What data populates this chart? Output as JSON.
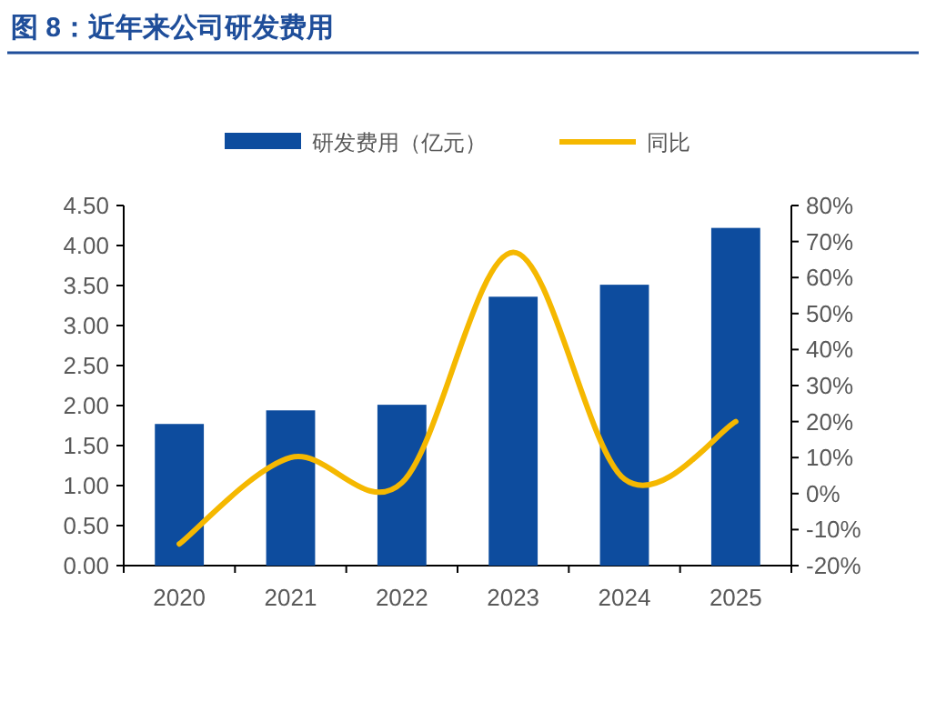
{
  "chart_data": {
    "type": "bar",
    "title": "图 8：近年来公司研发费用",
    "categories": [
      "2020",
      "2021",
      "2022",
      "2023",
      "2024",
      "2025"
    ],
    "series": [
      {
        "name": "研发费用（亿元）",
        "color": "#0d4c9e",
        "values": [
          1.77,
          1.94,
          2.01,
          3.36,
          3.51,
          4.22
        ]
      },
      {
        "name": "同比",
        "type": "line",
        "axis": "y2",
        "color": "#f5b800",
        "values": [
          -14,
          10,
          3,
          67,
          4,
          20
        ]
      }
    ],
    "ylim": [
      0,
      4.5
    ],
    "yticks": [
      {
        "value": 0,
        "label": "0.00"
      },
      {
        "value": 0.5,
        "label": "0.50"
      },
      {
        "value": 1,
        "label": "1.00"
      },
      {
        "value": 1.5,
        "label": "1.50"
      },
      {
        "value": 2,
        "label": "2.00"
      },
      {
        "value": 2.5,
        "label": "2.50"
      },
      {
        "value": 3,
        "label": "3.00"
      },
      {
        "value": 3.5,
        "label": "3.50"
      },
      {
        "value": 4,
        "label": "4.00"
      },
      {
        "value": 4.5,
        "label": "4.50"
      }
    ],
    "y2lim": [
      -20,
      80
    ],
    "y2ticks": [
      {
        "value": -20,
        "label": "-20%"
      },
      {
        "value": -10,
        "label": "-10%"
      },
      {
        "value": 0,
        "label": "0%"
      },
      {
        "value": 10,
        "label": "10%"
      },
      {
        "value": 20,
        "label": "20%"
      },
      {
        "value": 30,
        "label": "30%"
      },
      {
        "value": 40,
        "label": "40%"
      },
      {
        "value": 50,
        "label": "50%"
      },
      {
        "value": 60,
        "label": "60%"
      },
      {
        "value": 70,
        "label": "70%"
      },
      {
        "value": 80,
        "label": "80%"
      }
    ],
    "legend": "top",
    "grid": false
  }
}
